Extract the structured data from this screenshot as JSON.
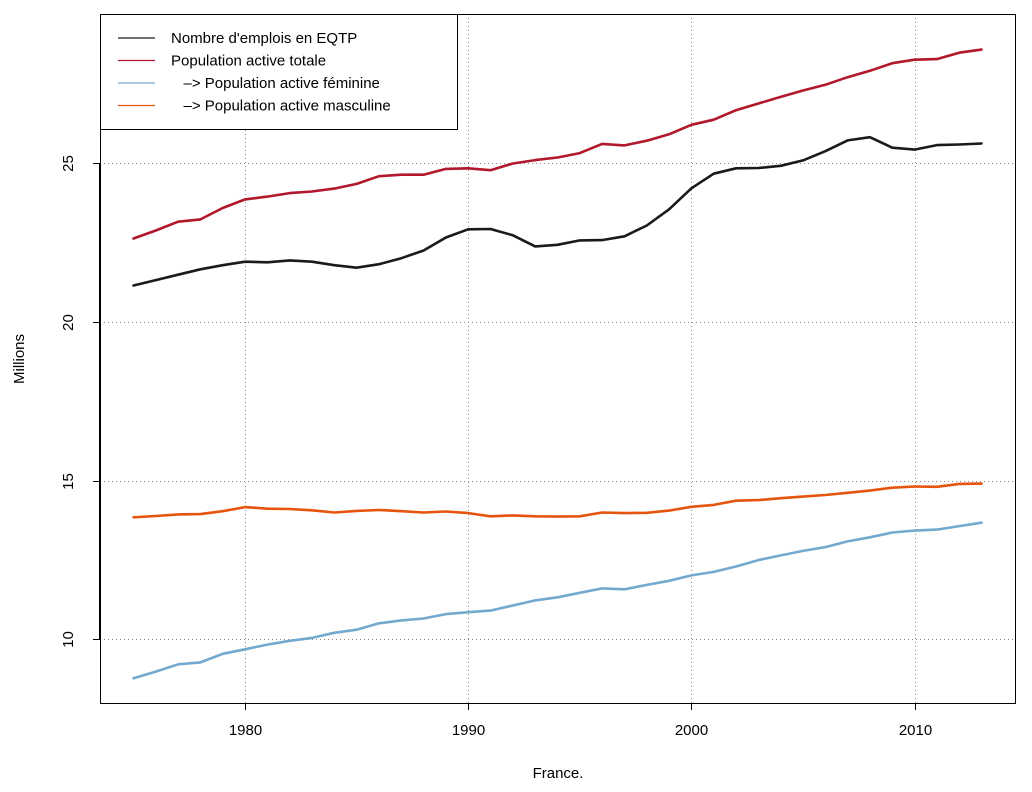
{
  "chart_data": {
    "type": "line",
    "xlabel": "France.",
    "ylabel": "Millions",
    "xlim": [
      1973.5,
      2014.5
    ],
    "ylim": [
      8.0,
      29.7
    ],
    "grid": true,
    "x_ticks": [
      1980,
      1990,
      2000,
      2010
    ],
    "y_ticks": [
      10,
      15,
      20,
      25
    ],
    "legend_position": "top-left",
    "x": [
      1975,
      1976,
      1977,
      1978,
      1979,
      1980,
      1981,
      1982,
      1983,
      1984,
      1985,
      1986,
      1987,
      1988,
      1989,
      1990,
      1991,
      1992,
      1993,
      1994,
      1995,
      1996,
      1997,
      1998,
      1999,
      2000,
      2001,
      2002,
      2003,
      2004,
      2005,
      2006,
      2007,
      2008,
      2009,
      2010,
      2011,
      2012,
      2013
    ],
    "series": [
      {
        "name": "Nombre d'emplois en EQTP",
        "legend_label": "Nombre d'emplois en EQTP",
        "color": "#1a1a1a",
        "values": [
          21.15,
          21.32,
          21.49,
          21.66,
          21.79,
          21.9,
          21.88,
          21.94,
          21.9,
          21.79,
          21.71,
          21.82,
          22.01,
          22.25,
          22.66,
          22.92,
          22.93,
          22.73,
          22.38,
          22.43,
          22.57,
          22.58,
          22.7,
          23.04,
          23.55,
          24.21,
          24.67,
          24.84,
          24.85,
          24.92,
          25.09,
          25.38,
          25.72,
          25.82,
          25.49,
          25.43,
          25.57,
          25.59,
          25.62
        ]
      },
      {
        "name": "Population active totale",
        "legend_label": "Population active totale",
        "color": "#b2182b",
        "values": [
          22.63,
          22.88,
          23.16,
          23.23,
          23.59,
          23.86,
          23.95,
          24.06,
          24.11,
          24.2,
          24.35,
          24.59,
          24.64,
          24.64,
          24.82,
          24.84,
          24.78,
          24.99,
          25.1,
          25.18,
          25.32,
          25.61,
          25.56,
          25.71,
          25.91,
          26.21,
          26.37,
          26.67,
          26.88,
          27.09,
          27.29,
          27.47,
          27.71,
          27.91,
          28.15,
          28.26,
          28.28,
          28.48,
          28.58
        ]
      },
      {
        "name": "Population active féminine",
        "legend_label": "   –> Population active féminine",
        "color": "#74a9cf",
        "values": [
          8.78,
          8.99,
          9.22,
          9.28,
          9.55,
          9.69,
          9.84,
          9.96,
          10.05,
          10.21,
          10.31,
          10.51,
          10.6,
          10.66,
          10.8,
          10.86,
          10.91,
          11.07,
          11.23,
          11.33,
          11.47,
          11.61,
          11.58,
          11.72,
          11.85,
          12.02,
          12.13,
          12.3,
          12.5,
          12.65,
          12.79,
          12.91,
          13.09,
          13.22,
          13.37,
          13.43,
          13.46,
          13.57,
          13.68
        ]
      },
      {
        "name": "Population active masculine",
        "legend_label": "   –> Population active masculine",
        "color": "#e6550d",
        "values": [
          13.85,
          13.89,
          13.94,
          13.95,
          14.04,
          14.17,
          14.12,
          14.11,
          14.07,
          14.0,
          14.05,
          14.08,
          14.04,
          14.0,
          14.03,
          13.98,
          13.88,
          13.91,
          13.88,
          13.87,
          13.88,
          14.0,
          13.98,
          13.99,
          14.06,
          14.18,
          14.24,
          14.37,
          14.39,
          14.45,
          14.5,
          14.55,
          14.62,
          14.69,
          14.78,
          14.82,
          14.81,
          14.9,
          14.91
        ]
      }
    ]
  }
}
